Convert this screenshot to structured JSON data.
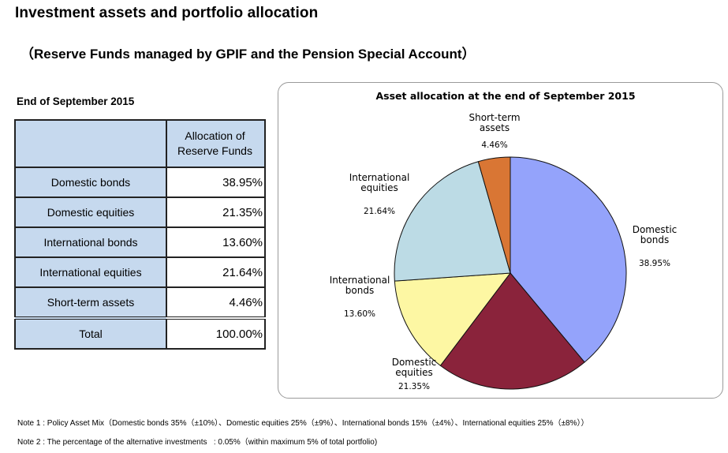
{
  "header": {
    "title": "Investment assets and portfolio allocation",
    "subtitle": "（Reserve Funds managed by GPIF and the Pension Special Account）"
  },
  "table": {
    "as_of": "End of September 2015",
    "column_header_line1": "Allocation of",
    "column_header_line2": "Reserve Funds",
    "rows": [
      {
        "label": "Domestic bonds",
        "value": "38.95%"
      },
      {
        "label": "Domestic equities",
        "value": "21.35%"
      },
      {
        "label": "International bonds",
        "value": "13.60%"
      },
      {
        "label": "International equities",
        "value": "21.64%"
      },
      {
        "label": "Short-term assets",
        "value": "4.46%"
      }
    ],
    "total": {
      "label": "Total",
      "value": "100.00%"
    }
  },
  "chart_data": {
    "type": "pie",
    "title": "Asset allocation at the end of September 2015",
    "start_angle": "12 o'clock, clockwise",
    "slices": [
      {
        "name": "Domestic bonds",
        "label_lines": [
          "Domestic",
          "bonds"
        ],
        "value": 38.95,
        "value_label": "38.95%",
        "color": "#94a3fb"
      },
      {
        "name": "Domestic equities",
        "label_lines": [
          "Domestic",
          "equities"
        ],
        "value": 21.35,
        "value_label": "21.35%",
        "color": "#8a233b"
      },
      {
        "name": "International bonds",
        "label_lines": [
          "International",
          "bonds"
        ],
        "value": 13.6,
        "value_label": "13.60%",
        "color": "#fdf7a3"
      },
      {
        "name": "International equities",
        "label_lines": [
          "International",
          "equities"
        ],
        "value": 21.64,
        "value_label": "21.64%",
        "color": "#bcdbe5"
      },
      {
        "name": "Short-term assets",
        "label_lines": [
          "Short-term",
          "assets"
        ],
        "value": 4.46,
        "value_label": "4.46%",
        "color": "#d97634"
      }
    ]
  },
  "notes": {
    "note1": "Note 1 : Policy Asset Mix（Domestic bonds 35%（±10%）、Domestic equities 25%（±9%）、International bonds 15%（±4%）、International equities 25%（±8%））",
    "note2": "Note 2 : The percentage of the alternative investments   : 0.05%（within maximum 5% of total portfolio)"
  }
}
